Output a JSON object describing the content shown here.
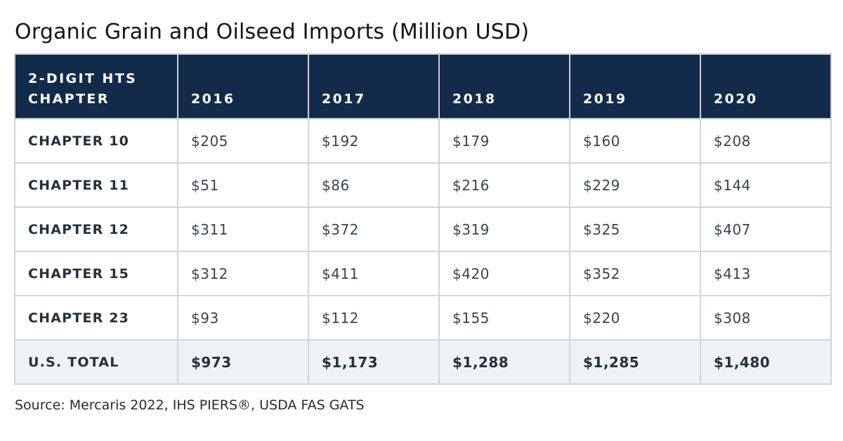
{
  "title": "Organic Grain and Oilseed Imports (Million USD)",
  "source": "Source: Mercaris 2022, IHS PIERS®, USDA FAS GATS",
  "colors": {
    "header_bg": "#132b4b",
    "header_text": "#ffffff",
    "total_bg": "#eff3f6",
    "border": "#d0d5da"
  },
  "chart_data": {
    "type": "table",
    "title": "Organic Grain and Oilseed Imports (Million USD)",
    "unit": "Million USD",
    "columns": [
      "2-DIGIT HTS CHAPTER",
      "2016",
      "2017",
      "2018",
      "2019",
      "2020"
    ],
    "rows": [
      {
        "label": "CHAPTER 10",
        "display": [
          "$205",
          "$192",
          "$179",
          "$160",
          "$208"
        ],
        "values": [
          205,
          192,
          179,
          160,
          208
        ]
      },
      {
        "label": "CHAPTER 11",
        "display": [
          "$51",
          "$86",
          "$216",
          "$229",
          "$144"
        ],
        "values": [
          51,
          86,
          216,
          229,
          144
        ]
      },
      {
        "label": "CHAPTER 12",
        "display": [
          "$311",
          "$372",
          "$319",
          "$325",
          "$407"
        ],
        "values": [
          311,
          372,
          319,
          325,
          407
        ]
      },
      {
        "label": "CHAPTER 15",
        "display": [
          "$312",
          "$411",
          "$420",
          "$352",
          "$413"
        ],
        "values": [
          312,
          411,
          420,
          352,
          413
        ]
      },
      {
        "label": "CHAPTER 23",
        "display": [
          "$93",
          "$112",
          "$155",
          "$220",
          "$308"
        ],
        "values": [
          93,
          112,
          155,
          220,
          308
        ]
      }
    ],
    "total": {
      "label": "U.S. TOTAL",
      "display": [
        "$973",
        "$1,173",
        "$1,288",
        "$1,285",
        "$1,480"
      ],
      "values": [
        973,
        1173,
        1288,
        1285,
        1480
      ]
    },
    "source": "Source: Mercaris 2022, IHS PIERS®, USDA FAS GATS"
  }
}
